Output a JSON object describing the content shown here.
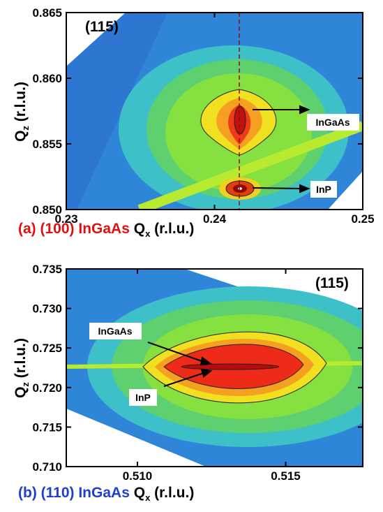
{
  "chart_data": [
    {
      "type": "contour",
      "panel_label": "(115)",
      "caption": "(a) (100) InGaAs",
      "caption_color": "#e01010",
      "xlabel": {
        "symbol": "Q",
        "subscript": "x",
        "unit": "(r.l.u.)"
      },
      "ylabel": {
        "symbol": "Q",
        "subscript": "z",
        "unit": "(r.l.u.)"
      },
      "xlim": [
        0.23,
        0.25
      ],
      "xticks": [
        0.23,
        0.24,
        0.25
      ],
      "ylim": [
        0.85,
        0.865
      ],
      "yticks": [
        {
          "value": 0.85,
          "label": "0.850"
        },
        {
          "value": 0.855,
          "label": "0.855"
        },
        {
          "value": 0.86,
          "label": "0.860"
        },
        {
          "value": 0.865,
          "label": "0.865"
        }
      ],
      "annotations": [
        "InGaAs",
        "InP"
      ]
    },
    {
      "type": "contour",
      "panel_label": "(115)",
      "caption": "(b) (110) InGaAs",
      "caption_color": "#1f3fd0",
      "xlabel": {
        "symbol": "Q",
        "subscript": "x",
        "unit": "(r.l.u.)"
      },
      "ylabel": {
        "symbol": "Q",
        "subscript": "z",
        "unit": "(r.l.u.)"
      },
      "xlim": [
        0.5076,
        0.5176
      ],
      "xticks": [
        {
          "value": 0.51,
          "label": "0.510"
        },
        {
          "value": 0.515,
          "label": "0.515"
        }
      ],
      "ylim": [
        0.71,
        0.735
      ],
      "yticks": [
        {
          "value": 0.71,
          "label": "0.710"
        },
        {
          "value": 0.715,
          "label": "0.715"
        },
        {
          "value": 0.72,
          "label": "0.720"
        },
        {
          "value": 0.725,
          "label": "0.725"
        },
        {
          "value": 0.73,
          "label": "0.730"
        },
        {
          "value": 0.735,
          "label": "0.735"
        }
      ],
      "annotations": [
        "InGaAs",
        "InP"
      ]
    }
  ]
}
